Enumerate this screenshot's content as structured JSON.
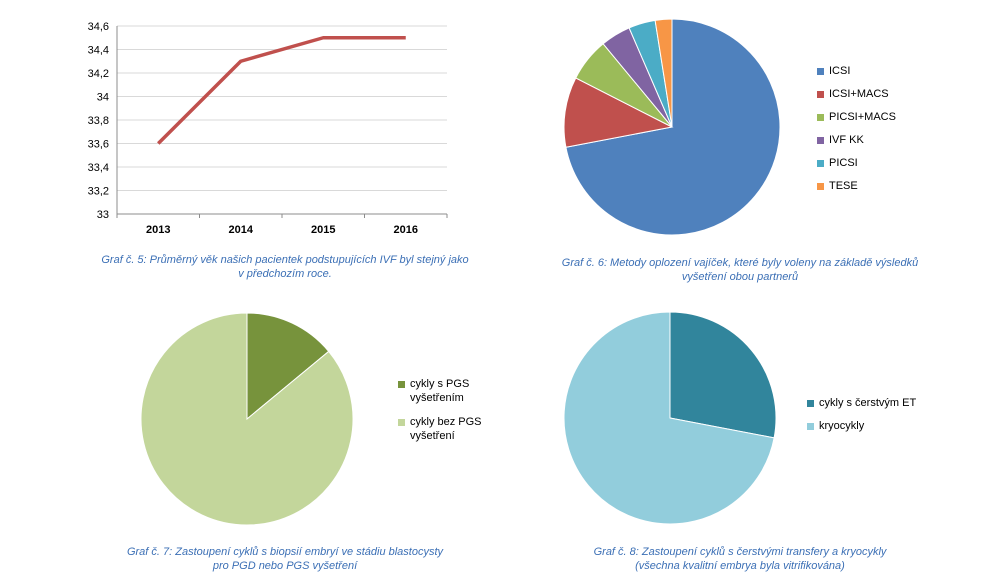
{
  "captions": {
    "c5": [
      "Graf č. 5: Průměrný věk našich pacientek podstupujících IVF byl stejný jako",
      "v předchozím roce."
    ],
    "c6": [
      "Graf č. 6: Metody oplození vajíček, které byly voleny na základě výsledků",
      "vyšetření obou partnerů"
    ],
    "c7": [
      "Graf č. 7: Zastoupení cyklů s biopsií embryí ve stádiu blastocysty",
      "pro PGD nebo PGS vyšetření"
    ],
    "c8": [
      "Graf č. 8: Zastoupení cyklů s čerstvými transfery a kryocykly",
      "(všechna kvalitní embrya byla vitrifikována)"
    ]
  },
  "chart_data": [
    {
      "type": "line",
      "x": [
        "2013",
        "2014",
        "2015",
        "2016"
      ],
      "series": [
        {
          "values": [
            33.6,
            34.3,
            34.5,
            34.5
          ],
          "color": "#c0504d"
        }
      ],
      "ylim": [
        33,
        34.6
      ],
      "yticks": [
        "33",
        "33,2",
        "33,4",
        "33,6",
        "33,8",
        "34",
        "34,2",
        "34,4",
        "34,6"
      ],
      "grid": true,
      "legend": "none"
    },
    {
      "type": "pie",
      "labels": [
        "ICSI",
        "ICSI+MACS",
        "PICSI+MACS",
        "IVF KK",
        "PICSI",
        "TESE"
      ],
      "values": [
        72,
        10.5,
        6.5,
        4.5,
        4,
        2.5
      ],
      "colors": [
        "#4f81bd",
        "#c0504d",
        "#9bbb59",
        "#8064a2",
        "#4bacc6",
        "#f79646"
      ],
      "legend": "right"
    },
    {
      "type": "pie",
      "labels": [
        "cykly s PGS vyšetřením",
        "cykly bez PGS vyšetření"
      ],
      "legend_lines": [
        [
          "cykly s PGS",
          "vyšetřením"
        ],
        [
          "cykly bez PGS",
          "vyšetření"
        ]
      ],
      "values": [
        14,
        86
      ],
      "colors": [
        "#77933c",
        "#c3d69b"
      ],
      "legend": "right"
    },
    {
      "type": "pie",
      "labels": [
        "cykly s čerstvým ET",
        "kryocykly"
      ],
      "values": [
        28,
        72
      ],
      "colors": [
        "#31859c",
        "#92cddc"
      ],
      "legend": "right"
    }
  ]
}
